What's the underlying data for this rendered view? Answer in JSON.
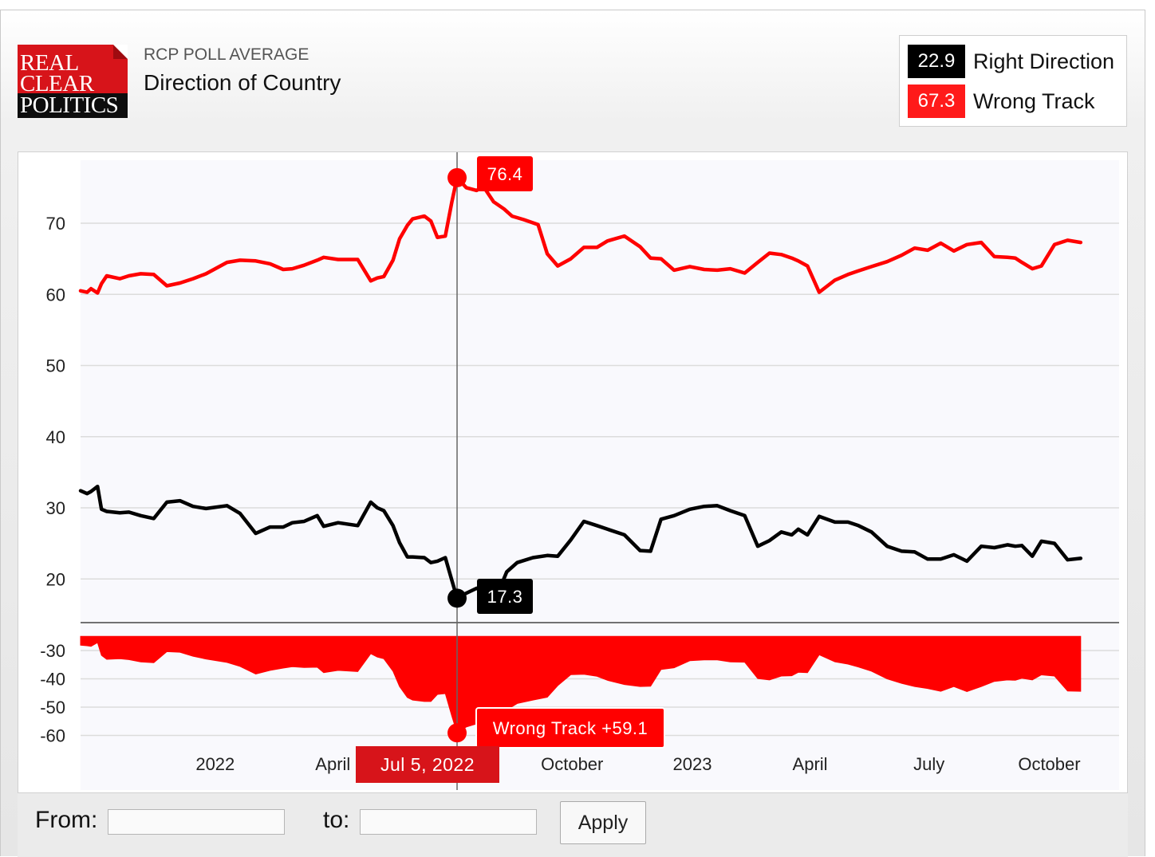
{
  "header": {
    "logo_lines": [
      "REAL",
      "CLEAR",
      "POLITICS"
    ],
    "subtitle": "RCP POLL AVERAGE",
    "title": "Direction of Country"
  },
  "legend": [
    {
      "value": "22.9",
      "name": "Right Direction",
      "color": "#000000"
    },
    {
      "value": "67.3",
      "name": "Wrong Track",
      "color": "#ff0000"
    }
  ],
  "tooltips": {
    "wrong_track_value": "76.4",
    "right_direction_value": "17.3",
    "spread": "Wrong Track +59.1",
    "date": "Jul 5, 2022"
  },
  "controls": {
    "from_label": "From:",
    "to_label": "to:",
    "from_value": "",
    "to_value": "",
    "apply_label": "Apply"
  },
  "chart_data": [
    {
      "type": "line",
      "ylim": [
        13,
        79
      ],
      "yticks": [
        20,
        30,
        40,
        50,
        60,
        70
      ],
      "grid": true,
      "x_range": [
        "2021-09-20",
        "2023-10-30"
      ],
      "xticks": [
        {
          "label": "2022",
          "date": "2022-01-01"
        },
        {
          "label": "April",
          "date": "2022-04-01"
        },
        {
          "label": "October",
          "date": "2022-10-01"
        },
        {
          "label": "2023",
          "date": "2023-01-01"
        },
        {
          "label": "April",
          "date": "2023-04-01"
        },
        {
          "label": "July",
          "date": "2023-07-01"
        },
        {
          "label": "October",
          "date": "2023-10-01"
        }
      ],
      "highlight": {
        "date": "2022-07-05",
        "wrong_track": 76.4,
        "right_direction": 17.3
      },
      "series": [
        {
          "name": "Wrong Track",
          "color": "#ff0000",
          "x": [
            "2021-09-20",
            "2021-09-25",
            "2021-09-28",
            "2021-10-03",
            "2021-10-06",
            "2021-10-10",
            "2021-10-20",
            "2021-10-27",
            "2021-11-05",
            "2021-11-15",
            "2021-11-25",
            "2021-12-05",
            "2021-12-15",
            "2021-12-25",
            "2022-01-10",
            "2022-01-20",
            "2022-02-01",
            "2022-02-12",
            "2022-02-22",
            "2022-03-01",
            "2022-03-10",
            "2022-03-20",
            "2022-03-25",
            "2022-04-05",
            "2022-04-20",
            "2022-04-30",
            "2022-05-05",
            "2022-05-10",
            "2022-05-17",
            "2022-05-22",
            "2022-05-28",
            "2022-06-01",
            "2022-06-10",
            "2022-06-15",
            "2022-06-20",
            "2022-06-26",
            "2022-07-01",
            "2022-07-05",
            "2022-07-12",
            "2022-07-20",
            "2022-07-25",
            "2022-08-02",
            "2022-08-10",
            "2022-08-16",
            "2022-08-25",
            "2022-09-05",
            "2022-09-12",
            "2022-09-20",
            "2022-09-30",
            "2022-10-10",
            "2022-10-20",
            "2022-10-28",
            "2022-11-10",
            "2022-11-22",
            "2022-11-30",
            "2022-12-08",
            "2022-12-18",
            "2022-12-30",
            "2023-01-10",
            "2023-01-20",
            "2023-01-30",
            "2023-02-10",
            "2023-02-20",
            "2023-03-01",
            "2023-03-10",
            "2023-03-18",
            "2023-03-23",
            "2023-03-30",
            "2023-04-08",
            "2023-04-20",
            "2023-04-30",
            "2023-05-08",
            "2023-05-18",
            "2023-05-30",
            "2023-06-10",
            "2023-06-20",
            "2023-06-30",
            "2023-07-10",
            "2023-07-20",
            "2023-07-30",
            "2023-08-10",
            "2023-08-20",
            "2023-08-30",
            "2023-09-05",
            "2023-09-10",
            "2023-09-18",
            "2023-09-25",
            "2023-10-05",
            "2023-10-15",
            "2023-10-25"
          ],
          "values": [
            60.5,
            60.3,
            60.8,
            60.2,
            61.5,
            62.6,
            62.2,
            62.6,
            62.9,
            62.8,
            61.2,
            61.6,
            62.2,
            62.9,
            64.5,
            64.8,
            64.7,
            64.3,
            63.5,
            63.6,
            64.1,
            64.8,
            65.2,
            64.9,
            64.9,
            61.9,
            62.3,
            62.5,
            64.8,
            67.8,
            69.7,
            70.6,
            71.0,
            70.3,
            68.0,
            68.2,
            73.0,
            76.4,
            75.0,
            74.6,
            75.2,
            73.0,
            72.0,
            71.0,
            70.5,
            69.8,
            65.7,
            64.0,
            65.0,
            66.6,
            66.6,
            67.5,
            68.2,
            66.7,
            65.1,
            65.0,
            63.4,
            63.9,
            63.5,
            63.4,
            63.6,
            63.0,
            64.5,
            65.8,
            65.6,
            65.1,
            64.7,
            64.0,
            60.3,
            62.0,
            62.8,
            63.3,
            63.9,
            64.6,
            65.5,
            66.5,
            66.2,
            67.2,
            66.1,
            67.0,
            67.3,
            65.3,
            65.2,
            65.1,
            64.5,
            63.6,
            64.0,
            67.0,
            67.6,
            67.3
          ]
        },
        {
          "name": "Right Direction",
          "color": "#000000",
          "segments": [
            {
              "x": [
                "2021-09-20",
                "2021-09-25",
                "2021-09-28",
                "2021-10-03",
                "2021-10-06",
                "2021-10-10",
                "2021-10-20",
                "2021-10-27",
                "2021-11-05",
                "2021-11-15",
                "2021-11-25",
                "2021-12-05",
                "2021-12-15",
                "2021-12-25",
                "2022-01-10",
                "2022-01-20",
                "2022-02-01",
                "2022-02-12",
                "2022-02-22",
                "2022-03-01",
                "2022-03-10",
                "2022-03-20",
                "2022-03-25",
                "2022-04-05",
                "2022-04-20",
                "2022-04-30",
                "2022-05-05",
                "2022-05-10",
                "2022-05-17",
                "2022-05-22",
                "2022-05-28",
                "2022-06-01",
                "2022-06-10",
                "2022-06-15",
                "2022-06-20",
                "2022-06-26",
                "2022-07-01",
                "2022-07-05",
                "2022-07-12",
                "2022-07-20",
                "2022-07-28"
              ],
              "values": [
                32.4,
                32.0,
                32.3,
                33.0,
                29.8,
                29.5,
                29.3,
                29.4,
                28.9,
                28.5,
                30.8,
                31.0,
                30.2,
                29.9,
                30.3,
                29.2,
                26.4,
                27.3,
                27.3,
                27.9,
                28.1,
                28.9,
                27.4,
                27.9,
                27.5,
                30.8,
                30.0,
                29.6,
                27.5,
                25.1,
                23.1,
                23.1,
                23.0,
                22.3,
                22.5,
                23.0,
                19.8,
                17.3,
                18.0,
                18.7,
                17.9
              ]
            },
            {
              "x": [
                "2022-08-05",
                "2022-08-12",
                "2022-08-20",
                "2022-09-01",
                "2022-09-12",
                "2022-09-20",
                "2022-09-30",
                "2022-10-10",
                "2022-10-20",
                "2022-10-28",
                "2022-11-10",
                "2022-11-22",
                "2022-11-30",
                "2022-12-08",
                "2022-12-18",
                "2022-12-30",
                "2023-01-10",
                "2023-01-20",
                "2023-01-30",
                "2023-02-10",
                "2023-02-20",
                "2023-03-01",
                "2023-03-10",
                "2023-03-18",
                "2023-03-23",
                "2023-03-30",
                "2023-04-08",
                "2023-04-20",
                "2023-04-30",
                "2023-05-08",
                "2023-05-18",
                "2023-05-30",
                "2023-06-10",
                "2023-06-20",
                "2023-06-30",
                "2023-07-10",
                "2023-07-20",
                "2023-07-30",
                "2023-08-10",
                "2023-08-20",
                "2023-08-30",
                "2023-09-05",
                "2023-09-10",
                "2023-09-18",
                "2023-09-25",
                "2023-10-05",
                "2023-10-15",
                "2023-10-25"
              ],
              "values": [
                17.9,
                21.0,
                22.3,
                23.0,
                23.3,
                23.2,
                25.5,
                28.1,
                27.5,
                27.0,
                26.2,
                24.0,
                23.9,
                28.4,
                28.9,
                29.8,
                30.2,
                30.3,
                29.6,
                28.9,
                24.6,
                25.4,
                26.6,
                26.2,
                27.0,
                26.2,
                28.8,
                28.0,
                28.0,
                27.5,
                26.6,
                24.6,
                23.9,
                23.8,
                22.8,
                22.8,
                23.4,
                22.5,
                24.6,
                24.4,
                24.8,
                24.6,
                24.7,
                23.2,
                25.3,
                25.0,
                22.7,
                22.9
              ]
            }
          ]
        }
      ]
    },
    {
      "type": "area",
      "name": "Spread",
      "color": "#ff0000",
      "ylim": [
        -65,
        -25
      ],
      "yticks": [
        -30,
        -40,
        -50,
        -60
      ],
      "grid": true,
      "highlight": {
        "date": "2022-07-05",
        "value": -59.1
      },
      "x": [
        "2021-09-20",
        "2021-09-25",
        "2021-09-28",
        "2021-10-03",
        "2021-10-06",
        "2021-10-10",
        "2021-10-20",
        "2021-10-27",
        "2021-11-05",
        "2021-11-15",
        "2021-11-25",
        "2021-12-05",
        "2021-12-15",
        "2021-12-25",
        "2022-01-10",
        "2022-01-20",
        "2022-02-01",
        "2022-02-12",
        "2022-02-22",
        "2022-03-01",
        "2022-03-10",
        "2022-03-20",
        "2022-03-25",
        "2022-04-05",
        "2022-04-20",
        "2022-04-30",
        "2022-05-05",
        "2022-05-10",
        "2022-05-17",
        "2022-05-22",
        "2022-05-28",
        "2022-06-01",
        "2022-06-10",
        "2022-06-15",
        "2022-06-20",
        "2022-06-26",
        "2022-07-01",
        "2022-07-05",
        "2022-07-12",
        "2022-07-20",
        "2022-07-28",
        "2022-08-05",
        "2022-08-12",
        "2022-08-20",
        "2022-09-01",
        "2022-09-12",
        "2022-09-20",
        "2022-09-30",
        "2022-10-10",
        "2022-10-20",
        "2022-10-28",
        "2022-11-10",
        "2022-11-22",
        "2022-11-30",
        "2022-12-08",
        "2022-12-18",
        "2022-12-30",
        "2023-01-10",
        "2023-01-20",
        "2023-01-30",
        "2023-02-10",
        "2023-02-20",
        "2023-03-01",
        "2023-03-10",
        "2023-03-18",
        "2023-03-23",
        "2023-03-30",
        "2023-04-08",
        "2023-04-20",
        "2023-04-30",
        "2023-05-08",
        "2023-05-18",
        "2023-05-30",
        "2023-06-10",
        "2023-06-20",
        "2023-06-30",
        "2023-07-10",
        "2023-07-20",
        "2023-07-30",
        "2023-08-10",
        "2023-08-20",
        "2023-08-30",
        "2023-09-05",
        "2023-09-10",
        "2023-09-18",
        "2023-09-25",
        "2023-10-05",
        "2023-10-15",
        "2023-10-25"
      ],
      "values": [
        -28.1,
        -28.3,
        -28.5,
        -27.2,
        -31.7,
        -33.1,
        -32.9,
        -33.2,
        -34.0,
        -34.3,
        -30.4,
        -30.6,
        -32.0,
        -33.0,
        -34.2,
        -35.6,
        -38.3,
        -37.0,
        -36.2,
        -35.7,
        -36.0,
        -35.9,
        -37.8,
        -37.0,
        -37.4,
        -31.1,
        -32.3,
        -32.9,
        -37.3,
        -42.7,
        -46.6,
        -47.5,
        -48.0,
        -48.0,
        -45.5,
        -45.2,
        -53.2,
        -59.1,
        -57.0,
        -55.9,
        -57.3,
        -55.1,
        -51.0,
        -48.7,
        -47.5,
        -46.5,
        -42.4,
        -38.5,
        -38.4,
        -39.1,
        -40.5,
        -42.0,
        -42.7,
        -42.6,
        -36.7,
        -36.1,
        -33.6,
        -33.3,
        -33.3,
        -34.0,
        -34.1,
        -39.9,
        -40.4,
        -39.0,
        -38.9,
        -37.7,
        -37.8,
        -31.5,
        -34.0,
        -34.8,
        -35.8,
        -37.3,
        -40.0,
        -41.6,
        -42.7,
        -43.4,
        -44.4,
        -42.7,
        -44.5,
        -42.7,
        -40.9,
        -40.4,
        -40.5,
        -39.8,
        -40.4,
        -38.6,
        -39.0,
        -44.3,
        -44.4
      ]
    }
  ]
}
